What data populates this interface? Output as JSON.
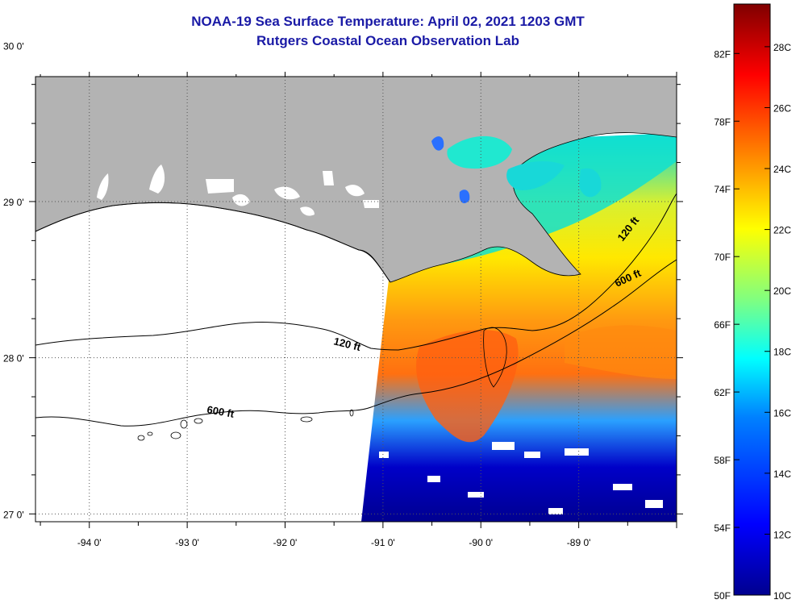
{
  "header": {
    "title_line1": "NOAA-19 Sea Surface Temperature:  April 02, 2021 1203 GMT",
    "title_line2": "Rutgers Coastal Ocean Observation Lab"
  },
  "map": {
    "longitude_labels": [
      "-94 0'",
      "-93 0'",
      "-92 0'",
      "-91 0'",
      "-90 0'",
      "-89 0'"
    ],
    "longitude_values": [
      -94,
      -93,
      -92,
      -91,
      -90,
      -89
    ],
    "latitude_labels": [
      "30 0'",
      "29 0'",
      "28 0'",
      "27 0'"
    ],
    "latitude_values": [
      30,
      29,
      28,
      27
    ],
    "lon_range": [
      -94.55,
      -88.0
    ],
    "lat_range": [
      26.95,
      29.8
    ],
    "grid": "dotted",
    "land_color": "#b3b3b3",
    "cloud_color": "#ffffff",
    "contours": [
      {
        "label": "120 ft"
      },
      {
        "label": "600 ft"
      },
      {
        "label": "120 ft"
      },
      {
        "label": "600 ft"
      }
    ]
  },
  "colorbar": {
    "fahrenheit_labels": [
      "82F",
      "78F",
      "74F",
      "70F",
      "66F",
      "62F",
      "58F",
      "54F",
      "50F"
    ],
    "fahrenheit_values": [
      82,
      78,
      74,
      70,
      66,
      62,
      58,
      54,
      50
    ],
    "celsius_labels": [
      "28C",
      "26C",
      "24C",
      "22C",
      "20C",
      "18C",
      "16C",
      "14C",
      "12C",
      "10C"
    ],
    "celsius_values": [
      28,
      26,
      24,
      22,
      20,
      18,
      16,
      14,
      12,
      10
    ],
    "range_celsius": [
      10,
      29.4
    ],
    "colors": [
      "#00008f",
      "#0000ff",
      "#0080ff",
      "#00ffff",
      "#80ff80",
      "#ffff00",
      "#ff8000",
      "#ff0000",
      "#800000"
    ]
  }
}
